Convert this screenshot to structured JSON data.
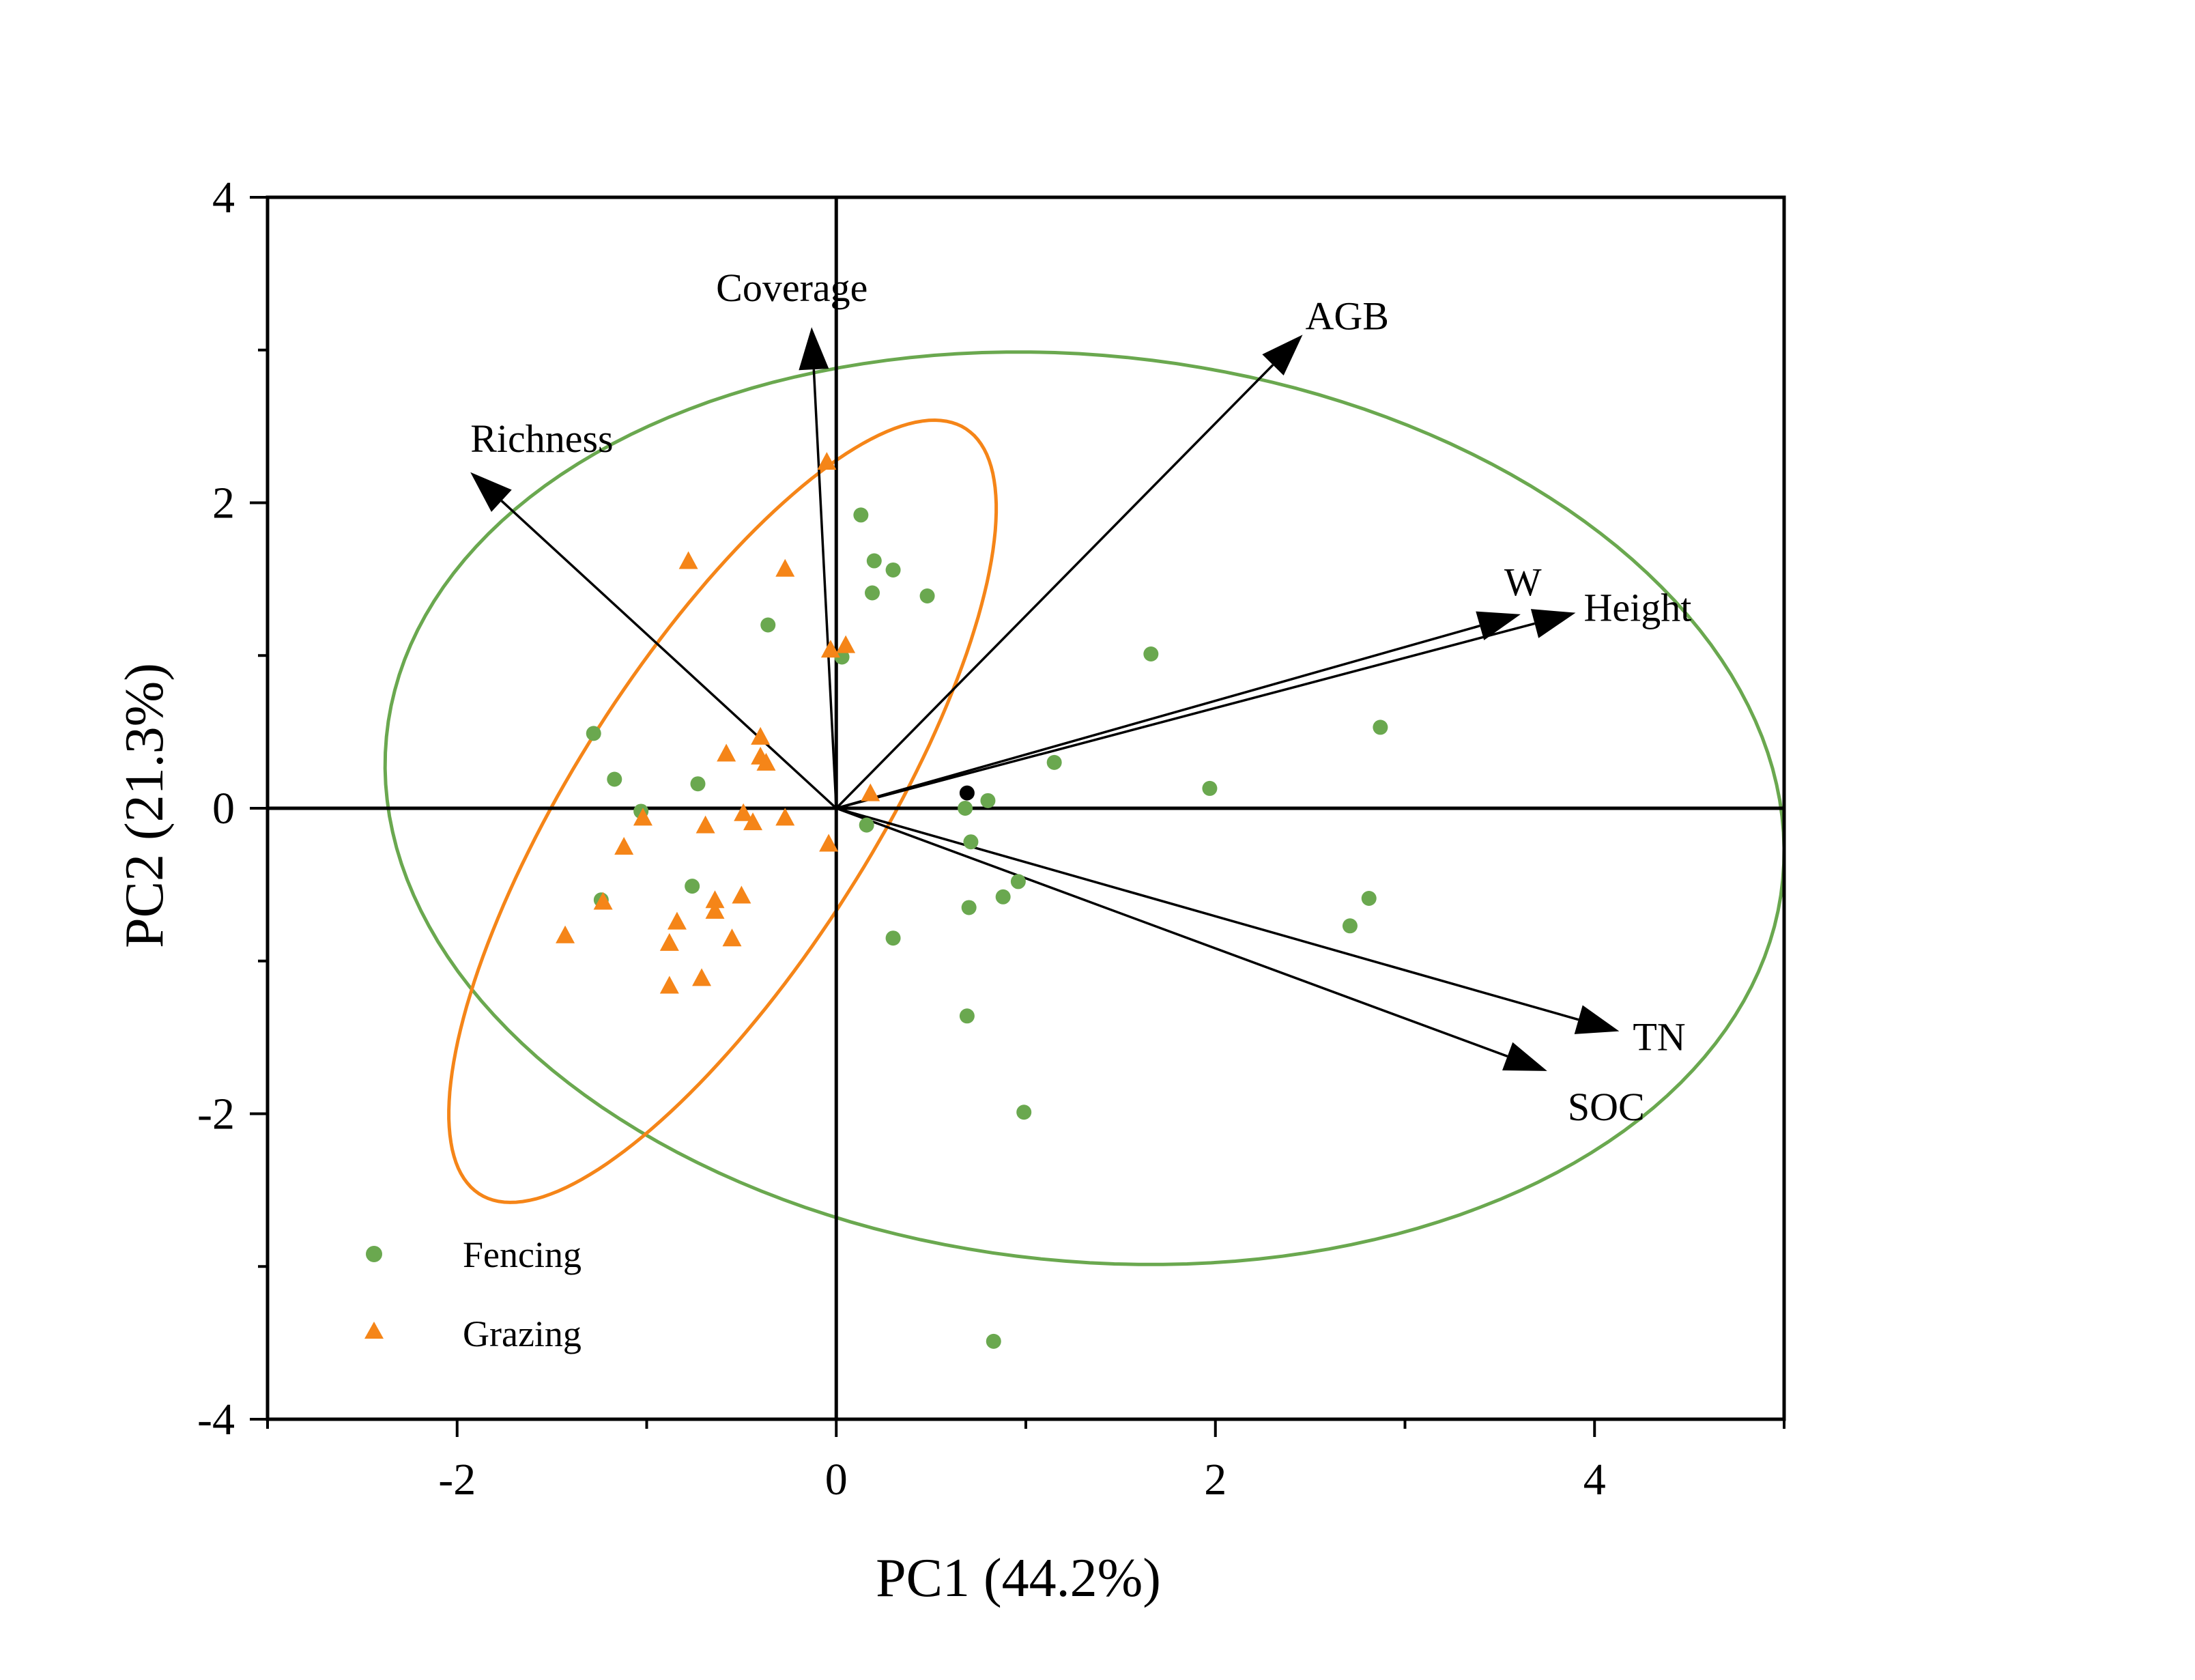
{
  "chart_data": {
    "type": "scatter",
    "title": "",
    "xlabel": "PC1 (44.2%)",
    "ylabel": "PC2 (21.3%)",
    "xlim": [
      -3,
      5
    ],
    "ylim": [
      -4,
      4
    ],
    "xticks": [
      -2,
      0,
      2,
      4
    ],
    "yticks": [
      -4,
      -2,
      0,
      2,
      4
    ],
    "xtick_labels": [
      "-2",
      "0",
      "2",
      "4"
    ],
    "ytick_labels": [
      "-4",
      "-2",
      "0",
      "2",
      "4"
    ],
    "legend_position": "bottom-left",
    "colors": {
      "fencing": "#6aa84f",
      "grazing": "#f58518",
      "axis": "#000000"
    },
    "series": [
      {
        "name": "Fencing",
        "marker": "circle",
        "color": "#6aa84f",
        "points": [
          [
            0.13,
            1.92
          ],
          [
            0.2,
            1.62
          ],
          [
            0.3,
            1.56
          ],
          [
            0.19,
            1.41
          ],
          [
            0.48,
            1.39
          ],
          [
            -0.36,
            1.2
          ],
          [
            0.03,
            0.99
          ],
          [
            1.66,
            1.01
          ],
          [
            2.87,
            0.53
          ],
          [
            -1.28,
            0.49
          ],
          [
            -1.17,
            0.19
          ],
          [
            -0.73,
            0.16
          ],
          [
            1.15,
            0.3
          ],
          [
            1.97,
            0.13
          ],
          [
            0.8,
            0.05
          ],
          [
            0.68,
            0.0
          ],
          [
            -1.03,
            -0.02
          ],
          [
            0.16,
            -0.11
          ],
          [
            0.71,
            -0.22
          ],
          [
            -0.76,
            -0.51
          ],
          [
            -1.24,
            -0.6
          ],
          [
            0.96,
            -0.48
          ],
          [
            0.88,
            -0.58
          ],
          [
            0.7,
            -0.65
          ],
          [
            2.81,
            -0.59
          ],
          [
            2.71,
            -0.77
          ],
          [
            0.3,
            -0.85
          ],
          [
            0.69,
            -1.36
          ],
          [
            0.99,
            -1.99
          ],
          [
            0.83,
            -3.49
          ]
        ]
      },
      {
        "name": "Grazing",
        "marker": "triangle",
        "color": "#f58518",
        "points": [
          [
            -0.05,
            2.27
          ],
          [
            -0.78,
            1.62
          ],
          [
            -0.27,
            1.57
          ],
          [
            0.05,
            1.07
          ],
          [
            -0.03,
            1.04
          ],
          [
            -0.4,
            0.47
          ],
          [
            -0.58,
            0.36
          ],
          [
            -0.4,
            0.34
          ],
          [
            -0.37,
            0.3
          ],
          [
            0.18,
            0.1
          ],
          [
            -0.49,
            -0.03
          ],
          [
            -1.02,
            -0.06
          ],
          [
            -0.44,
            -0.09
          ],
          [
            -0.69,
            -0.11
          ],
          [
            -0.27,
            -0.06
          ],
          [
            -1.12,
            -0.25
          ],
          [
            -0.04,
            -0.23
          ],
          [
            -0.5,
            -0.57
          ],
          [
            -0.64,
            -0.6
          ],
          [
            -1.23,
            -0.61
          ],
          [
            -0.64,
            -0.67
          ],
          [
            -0.84,
            -0.74
          ],
          [
            -0.55,
            -0.85
          ],
          [
            -1.43,
            -0.83
          ],
          [
            -0.88,
            -0.88
          ],
          [
            -0.71,
            -1.11
          ],
          [
            -0.88,
            -1.16
          ]
        ]
      }
    ],
    "extra_point": {
      "name": "origin-marker",
      "x": 0.69,
      "y": 0.1,
      "color": "#000000"
    },
    "loadings": [
      {
        "label": "Coverage",
        "x": -0.13,
        "y": 3.15
      },
      {
        "label": "AGB",
        "x": 2.46,
        "y": 3.1
      },
      {
        "label": "Richness",
        "x": -1.93,
        "y": 2.2
      },
      {
        "label": "W",
        "x": 3.61,
        "y": 1.27
      },
      {
        "label": "Height",
        "x": 3.9,
        "y": 1.28
      },
      {
        "label": "TN",
        "x": 4.13,
        "y": -1.46
      },
      {
        "label": "SOC",
        "x": 3.75,
        "y": -1.72
      }
    ],
    "ellipses": [
      {
        "group": "Fencing",
        "cx": 1.31,
        "cy": 0.0,
        "rx": 3.72,
        "ry": 2.95,
        "angle_deg": -12
      },
      {
        "group": "Grazing",
        "cx": -0.6,
        "cy": -0.02,
        "rx": 2.82,
        "ry": 0.83,
        "angle_deg": 64
      }
    ]
  }
}
